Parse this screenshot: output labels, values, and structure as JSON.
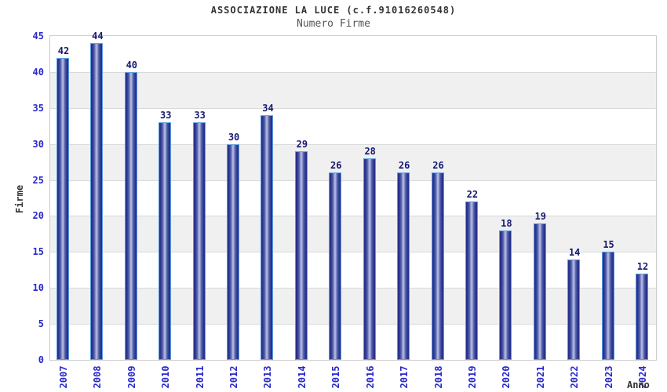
{
  "chart_data": {
    "type": "bar",
    "title": "ASSOCIAZIONE LA LUCE (c.f.91016260548)",
    "subtitle": "Numero Firme",
    "xlabel": "Anno",
    "ylabel": "Firme",
    "categories": [
      "2007",
      "2008",
      "2009",
      "2010",
      "2011",
      "2012",
      "2013",
      "2014",
      "2015",
      "2016",
      "2017",
      "2018",
      "2019",
      "2020",
      "2021",
      "2022",
      "2023",
      "2024"
    ],
    "values": [
      42,
      44,
      40,
      33,
      33,
      30,
      34,
      29,
      26,
      28,
      26,
      26,
      22,
      18,
      19,
      14,
      15,
      12
    ],
    "ylim": [
      0,
      45
    ],
    "ytick_step": 5,
    "yticks": [
      0,
      5,
      10,
      15,
      20,
      25,
      30,
      35,
      40,
      45
    ],
    "data_labels_shown": true,
    "grid": "horizontal alternating bands every 5 units",
    "legend": "none",
    "colors": {
      "bar_edge": "#212e88",
      "bar_center": "#b7bfe6",
      "bar_border": "#5b9ce0",
      "value_label": "#15186f",
      "axis_tick_label": "#2828cc",
      "band_gray": "#f0f0f1",
      "band_white": "#ffffff",
      "grid_line": "#d9d9d9",
      "frame_border": "#cccccc",
      "title": "#333333",
      "subtitle": "#555555",
      "axis_title": "#333333",
      "background": "#ffffff"
    }
  }
}
